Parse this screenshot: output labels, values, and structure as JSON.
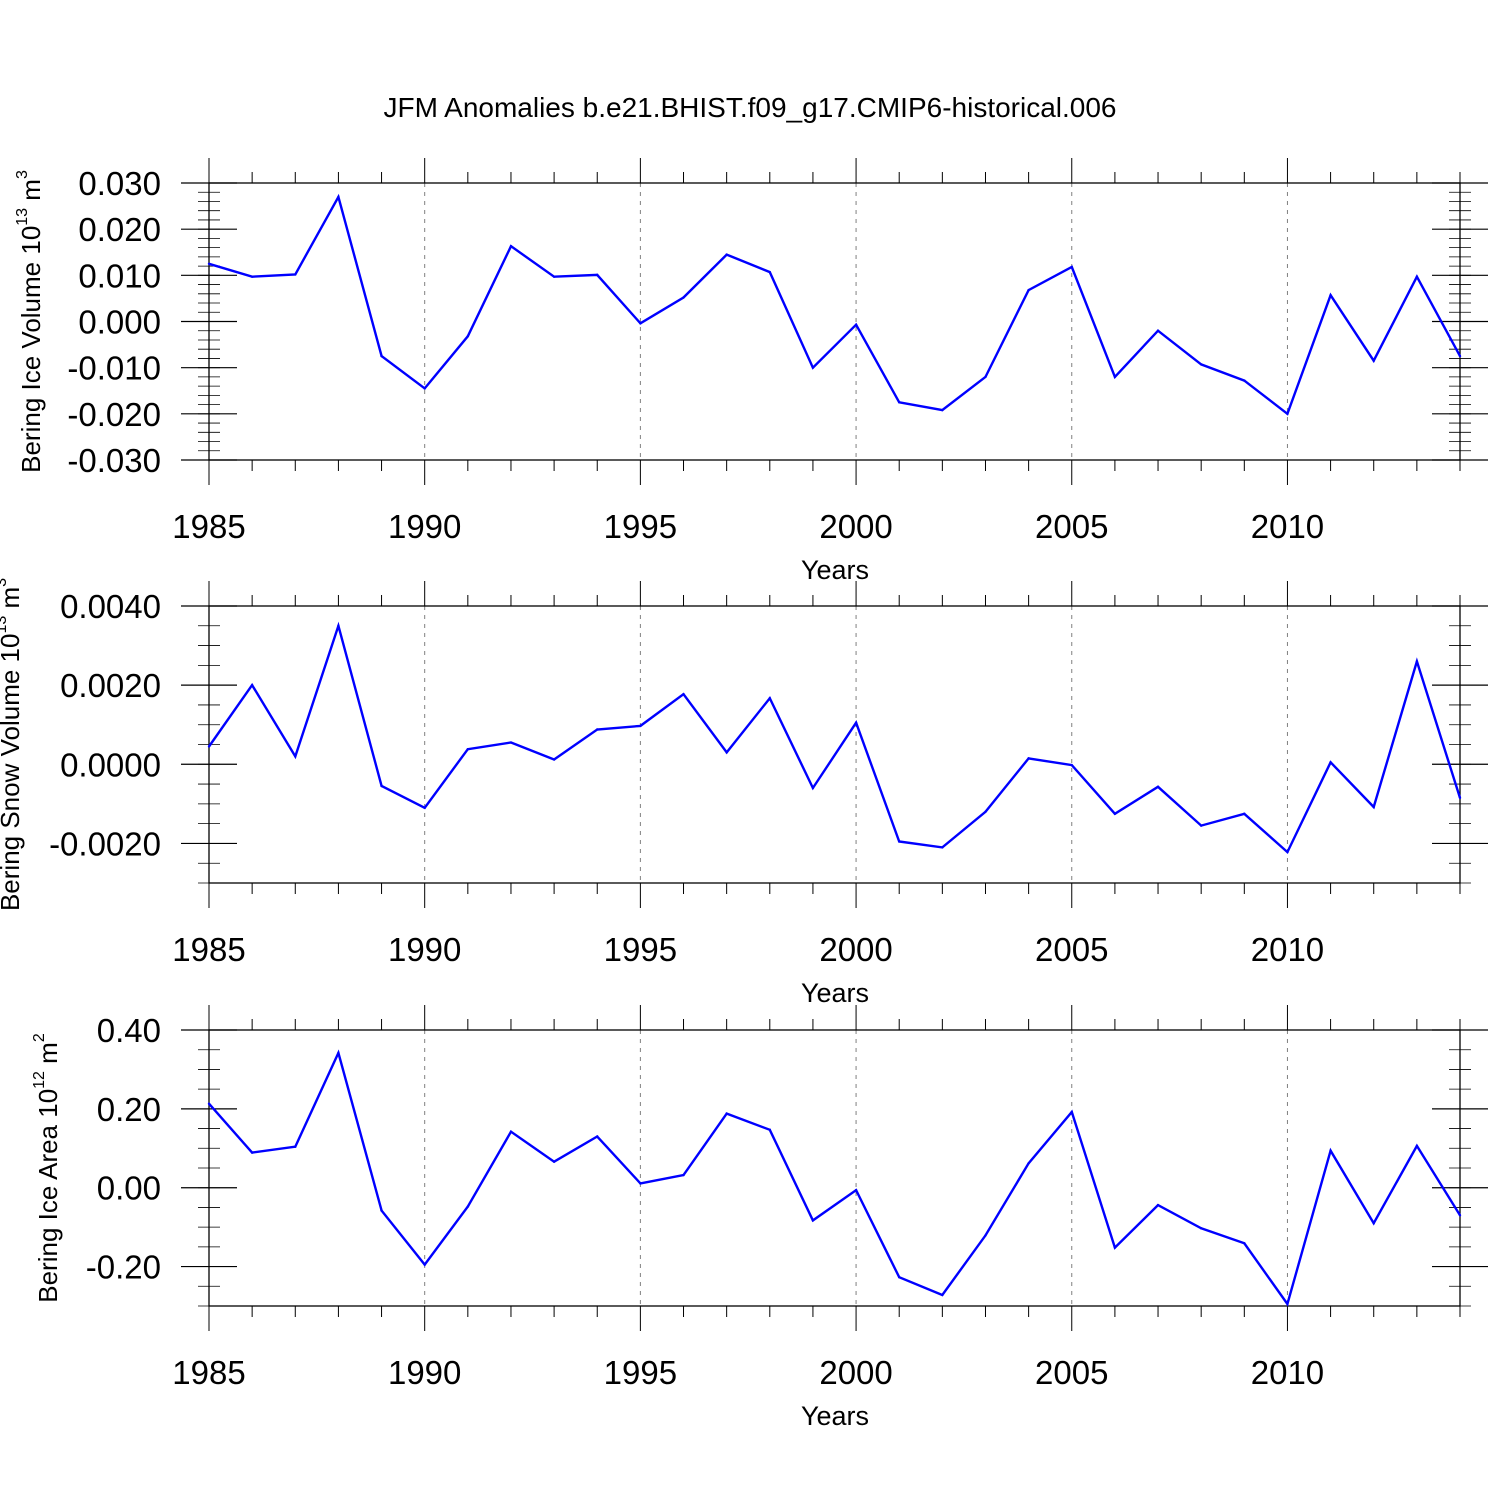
{
  "figure_title": "JFM Anomalies b.e21.BHIST.f09_g17.CMIP6-historical.006",
  "colors": {
    "line": "#0000ff",
    "axis": "#000000",
    "grid": "#808080"
  },
  "chart_data": [
    {
      "type": "line",
      "title": "JFM Anomalies b.e21.BHIST.f09_g17.CMIP6-historical.006",
      "xlabel": "Years",
      "ylabel": {
        "prefix": "Bering Ice Volume 10",
        "exponent": "13",
        "unit": " m",
        "unit_exponent": "3"
      },
      "x": [
        1985,
        1986,
        1987,
        1988,
        1989,
        1990,
        1991,
        1992,
        1993,
        1994,
        1995,
        1996,
        1997,
        1998,
        1999,
        2000,
        2001,
        2002,
        2003,
        2004,
        2005,
        2006,
        2007,
        2008,
        2009,
        2010,
        2011,
        2012,
        2013,
        2014
      ],
      "values": [
        0.0125,
        0.0097,
        0.0102,
        0.027,
        -0.0075,
        -0.0145,
        -0.0032,
        0.0163,
        0.0097,
        0.0101,
        -0.0004,
        0.0052,
        0.0145,
        0.0107,
        -0.01,
        -0.0007,
        -0.0175,
        -0.0192,
        -0.012,
        0.0068,
        0.0118,
        -0.012,
        -0.002,
        -0.0093,
        -0.0128,
        -0.02,
        0.0057,
        -0.0085,
        0.0097,
        -0.0075
      ],
      "xlim": [
        1985,
        2014
      ],
      "ylim": [
        -0.03,
        0.03
      ],
      "yticks": [
        -0.03,
        -0.02,
        -0.01,
        0.0,
        0.01,
        0.02,
        0.03
      ],
      "ytick_labels": [
        "-0.030",
        "-0.020",
        "-0.010",
        "0.000",
        "0.010",
        "0.020",
        "0.030"
      ],
      "xticks": [
        1985,
        1990,
        1995,
        2000,
        2005,
        2010
      ],
      "xtick_labels": [
        "1985",
        "1990",
        "1995",
        "2000",
        "2005",
        "2010"
      ],
      "y_minor_step": 0.002,
      "grid": "dashed vertical at labeled years"
    },
    {
      "type": "line",
      "xlabel": "Years",
      "ylabel": {
        "prefix": "Bering Snow Volume 10",
        "exponent": "13",
        "unit": " m",
        "unit_exponent": "3"
      },
      "x": [
        1985,
        1986,
        1987,
        1988,
        1989,
        1990,
        1991,
        1992,
        1993,
        1994,
        1995,
        1996,
        1997,
        1998,
        1999,
        2000,
        2001,
        2002,
        2003,
        2004,
        2005,
        2006,
        2007,
        2008,
        2009,
        2010,
        2011,
        2012,
        2013,
        2014
      ],
      "values": [
        0.00045,
        0.002,
        0.0002,
        0.0035,
        -0.00055,
        -0.0011,
        0.00038,
        0.00055,
        0.00012,
        0.00088,
        0.00097,
        0.00177,
        0.0003,
        0.00167,
        -0.0006,
        0.00105,
        -0.00195,
        -0.0021,
        -0.0012,
        0.00015,
        -2e-05,
        -0.00125,
        -0.00057,
        -0.00155,
        -0.00125,
        -0.00222,
        5e-05,
        -0.00108,
        0.0026,
        -0.00085
      ],
      "xlim": [
        1985,
        2014
      ],
      "ylim": [
        -0.003,
        0.004
      ],
      "yticks": [
        -0.002,
        0.0,
        0.002,
        0.004
      ],
      "ytick_labels": [
        "-0.0020",
        "0.0000",
        "0.0020",
        "0.0040"
      ],
      "xticks": [
        1985,
        1990,
        1995,
        2000,
        2005,
        2010
      ],
      "xtick_labels": [
        "1985",
        "1990",
        "1995",
        "2000",
        "2005",
        "2010"
      ],
      "y_minor_step": 0.0005,
      "grid": "dashed vertical at labeled years"
    },
    {
      "type": "line",
      "xlabel": "Years",
      "ylabel": {
        "prefix": "Bering Ice Area 10",
        "exponent": "12",
        "unit": " m",
        "unit_exponent": "2"
      },
      "x": [
        1985,
        1986,
        1987,
        1988,
        1989,
        1990,
        1991,
        1992,
        1993,
        1994,
        1995,
        1996,
        1997,
        1998,
        1999,
        2000,
        2001,
        2002,
        2003,
        2004,
        2005,
        2006,
        2007,
        2008,
        2009,
        2010,
        2011,
        2012,
        2013,
        2014
      ],
      "values": [
        0.213,
        0.089,
        0.104,
        0.342,
        -0.058,
        -0.195,
        -0.048,
        0.142,
        0.066,
        0.13,
        0.011,
        0.032,
        0.188,
        0.147,
        -0.083,
        -0.006,
        -0.227,
        -0.272,
        -0.121,
        0.062,
        0.192,
        -0.152,
        -0.044,
        -0.103,
        -0.141,
        -0.295,
        0.094,
        -0.09,
        0.106,
        -0.07
      ],
      "xlim": [
        1985,
        2014
      ],
      "ylim": [
        -0.3,
        0.4
      ],
      "yticks": [
        -0.2,
        0.0,
        0.2,
        0.4
      ],
      "ytick_labels": [
        "-0.20",
        "0.00",
        "0.20",
        "0.40"
      ],
      "xticks": [
        1985,
        1990,
        1995,
        2000,
        2005,
        2010
      ],
      "xtick_labels": [
        "1985",
        "1990",
        "1995",
        "2000",
        "2005",
        "2010"
      ],
      "y_minor_step": 0.05,
      "grid": "dashed vertical at labeled years"
    }
  ]
}
